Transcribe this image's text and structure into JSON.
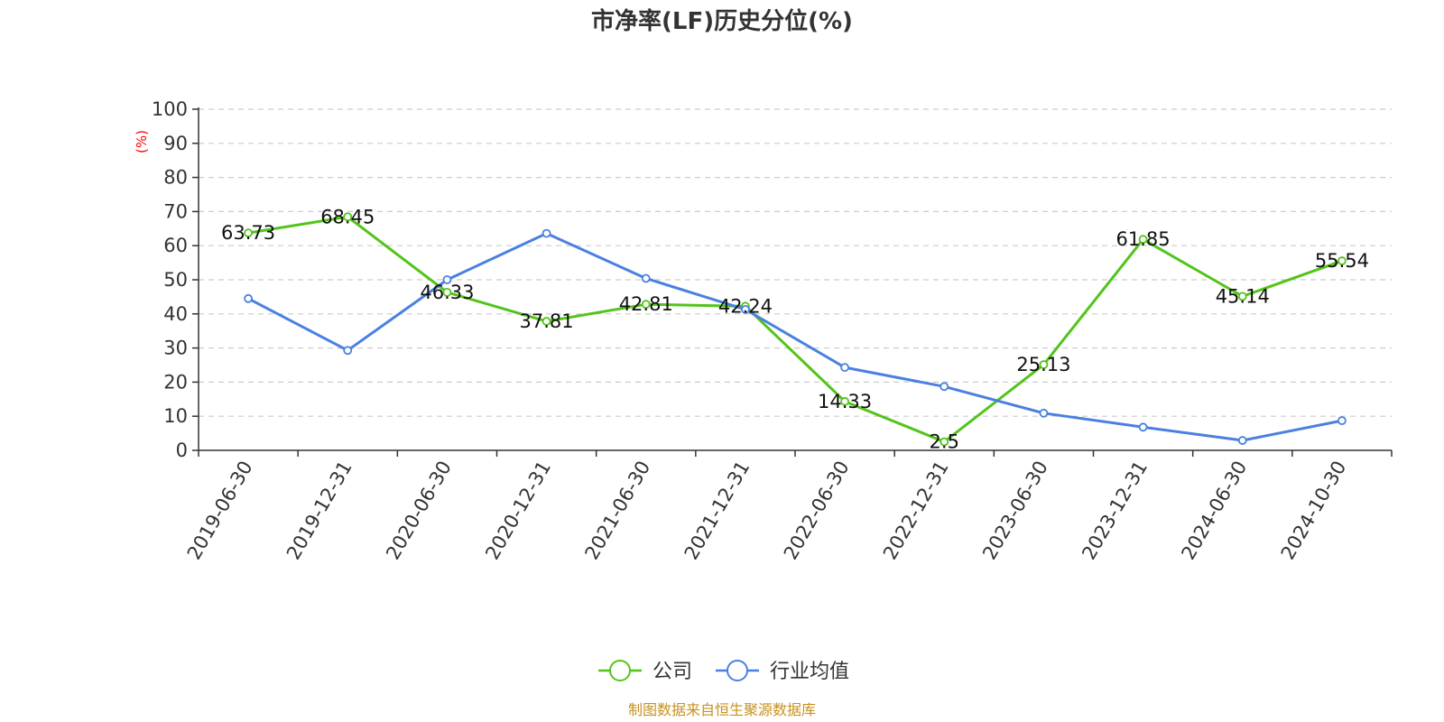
{
  "chart_data": {
    "type": "line",
    "title": "市净率(LF)历史分位(%)",
    "yunit": "(%)",
    "ylim": [
      0,
      100
    ],
    "yticks": [
      0,
      10,
      20,
      30,
      40,
      50,
      60,
      70,
      80,
      90,
      100
    ],
    "grid": true,
    "categories": [
      "2019-06-30",
      "2019-12-31",
      "2020-06-30",
      "2020-12-31",
      "2021-06-30",
      "2021-12-31",
      "2022-06-30",
      "2022-12-31",
      "2023-06-30",
      "2023-12-31",
      "2024-06-30",
      "2024-10-30"
    ],
    "series": [
      {
        "name": "公司",
        "color": "#52c41a",
        "values": [
          63.73,
          68.45,
          46.33,
          37.81,
          42.81,
          42.24,
          14.33,
          2.5,
          25.13,
          61.85,
          45.14,
          55.54
        ],
        "labels": [
          "63.73",
          "68.45",
          "46.33",
          "37.81",
          "42.81",
          "42.24",
          "14.33",
          "2.5",
          "25.13",
          "61.85",
          "45.14",
          "55.54"
        ],
        "show_labels": true
      },
      {
        "name": "行业均值",
        "color": "#4a80e0",
        "values": [
          44.5,
          29.3,
          50.0,
          63.6,
          50.4,
          41.3,
          24.3,
          18.7,
          10.9,
          6.8,
          2.9,
          8.7
        ],
        "show_labels": false
      }
    ],
    "legend_position": "bottom-center"
  },
  "colors": {
    "axis": "#333333",
    "grid": "#cccccc",
    "unit": "#ff0000",
    "source": "#c8911e"
  },
  "footer": {
    "source": "制图数据来自恒生聚源数据库"
  }
}
